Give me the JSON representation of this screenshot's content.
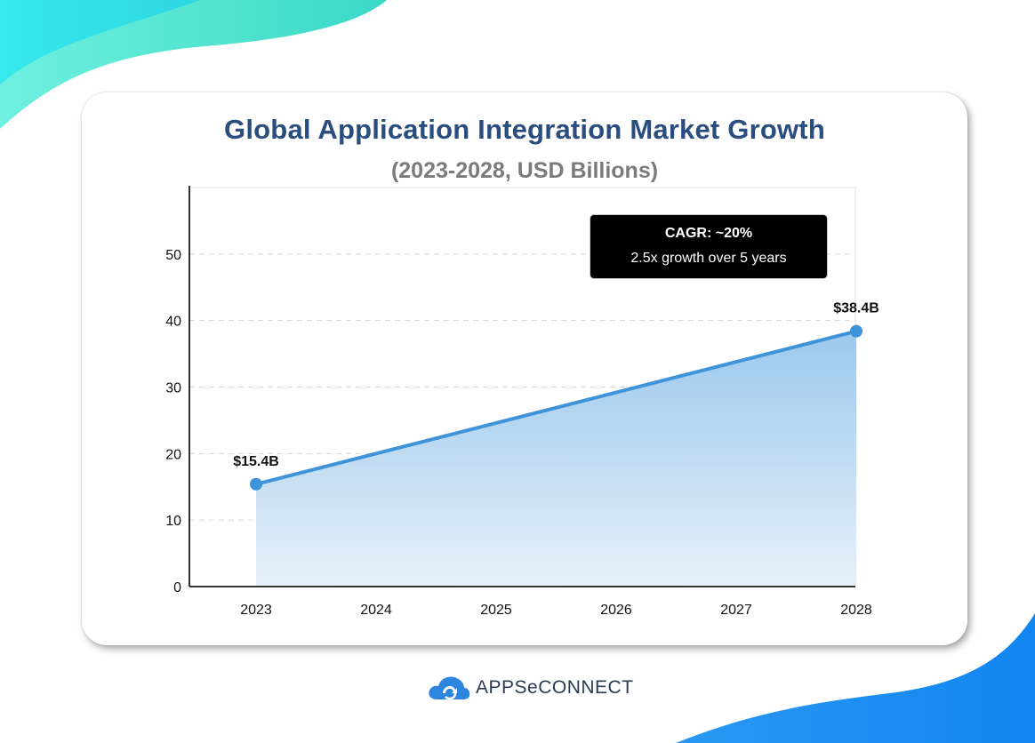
{
  "chart_data": {
    "type": "area",
    "title": "Global Application Integration Market Growth",
    "subtitle": "(2023-2028, USD Billions)",
    "categories": [
      "2023",
      "2024",
      "2025",
      "2026",
      "2027",
      "2028"
    ],
    "ylim": [
      0,
      60
    ],
    "yticks": [
      0,
      10,
      20,
      30,
      40,
      50
    ],
    "grid": true,
    "points": [
      {
        "x": "2023",
        "y": 15.4,
        "label": "$15.4B"
      },
      {
        "x": "2028",
        "y": 38.4,
        "label": "$38.4B"
      }
    ],
    "annotation": {
      "line1": "CAGR: ~20%",
      "line2": "2.5x growth over 5 years"
    },
    "colors": {
      "line": "#3f93d8",
      "fill_top": "#9cc8ec",
      "fill_bottom": "#e6f1fa"
    }
  },
  "brand": {
    "logo_text": "APPSeCONNECT",
    "logo_icon": "cloud-sync-icon",
    "logo_color": "#2d86de"
  },
  "theme": {
    "title_color": "#2a4d7f",
    "teal": "#3fe0c8",
    "blue": "#1a8cf0"
  }
}
